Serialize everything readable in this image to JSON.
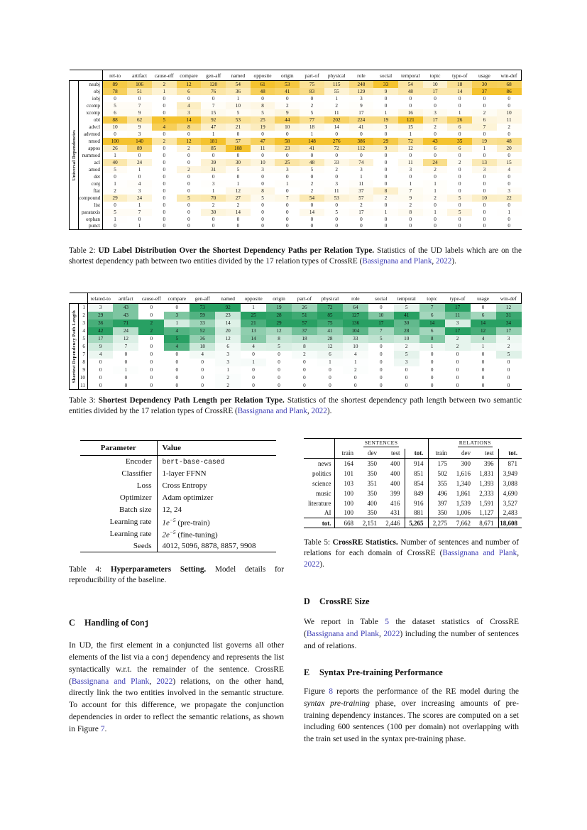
{
  "colors": {
    "link": "#3C3CB4",
    "heat_yellow": "#F5C32E",
    "heat_green": "#28A063"
  },
  "table2": {
    "side_label": "Universal Dependencies",
    "columns": [
      "rel-to",
      "artifact",
      "cause-eff",
      "compare",
      "gen-aff",
      "named",
      "opposite",
      "origin",
      "part-of",
      "physical",
      "role",
      "social",
      "temporal",
      "topic",
      "type-of",
      "usage",
      "win-def"
    ],
    "rows": [
      {
        "label": "nsubj",
        "values": [
          89,
          106,
          2,
          12,
          120,
          54,
          61,
          53,
          75,
          115,
          248,
          33,
          54,
          10,
          18,
          30,
          68
        ]
      },
      {
        "label": "obj",
        "values": [
          78,
          51,
          1,
          6,
          76,
          36,
          48,
          41,
          83,
          55,
          129,
          9,
          48,
          17,
          14,
          37,
          86
        ]
      },
      {
        "label": "iobj",
        "values": [
          0,
          0,
          0,
          0,
          0,
          1,
          0,
          0,
          0,
          1,
          3,
          0,
          0,
          0,
          0,
          0,
          0
        ]
      },
      {
        "label": "ccomp",
        "values": [
          5,
          7,
          0,
          4,
          7,
          10,
          8,
          2,
          2,
          2,
          9,
          0,
          0,
          0,
          0,
          0,
          0
        ]
      },
      {
        "label": "xcomp",
        "values": [
          6,
          9,
          0,
          3,
          15,
          5,
          5,
          9,
          5,
          11,
          17,
          1,
          16,
          3,
          1,
          2,
          10
        ]
      },
      {
        "label": "obl",
        "values": [
          88,
          62,
          5,
          14,
          92,
          53,
          25,
          44,
          77,
          202,
          224,
          19,
          121,
          17,
          26,
          6,
          11
        ]
      },
      {
        "label": "advcl",
        "values": [
          10,
          9,
          4,
          8,
          47,
          21,
          19,
          10,
          18,
          14,
          41,
          3,
          15,
          2,
          6,
          7,
          2
        ]
      },
      {
        "label": "advmod",
        "values": [
          0,
          3,
          0,
          0,
          1,
          0,
          0,
          0,
          1,
          0,
          0,
          0,
          1,
          0,
          0,
          0,
          0
        ]
      },
      {
        "label": "nmod",
        "values": [
          100,
          140,
          2,
          12,
          181,
          57,
          47,
          58,
          148,
          276,
          386,
          29,
          72,
          43,
          35,
          19,
          48
        ]
      },
      {
        "label": "appos",
        "values": [
          26,
          89,
          0,
          2,
          85,
          108,
          11,
          23,
          41,
          72,
          112,
          9,
          12,
          6,
          6,
          1,
          20
        ]
      },
      {
        "label": "nummod",
        "values": [
          1,
          0,
          0,
          0,
          0,
          0,
          0,
          0,
          0,
          0,
          0,
          0,
          0,
          0,
          0,
          0,
          0
        ]
      },
      {
        "label": "acl",
        "values": [
          40,
          24,
          0,
          0,
          39,
          30,
          10,
          25,
          48,
          33,
          74,
          0,
          11,
          24,
          2,
          13,
          15
        ]
      },
      {
        "label": "amod",
        "values": [
          5,
          1,
          0,
          2,
          31,
          5,
          3,
          3,
          5,
          2,
          3,
          0,
          3,
          2,
          0,
          3,
          4
        ]
      },
      {
        "label": "det",
        "values": [
          0,
          0,
          0,
          0,
          0,
          0,
          0,
          0,
          0,
          0,
          1,
          0,
          0,
          0,
          0,
          0,
          0
        ]
      },
      {
        "label": "conj",
        "values": [
          1,
          4,
          0,
          0,
          3,
          1,
          0,
          1,
          2,
          3,
          11,
          0,
          1,
          1,
          0,
          0,
          0
        ]
      },
      {
        "label": "flat",
        "values": [
          2,
          3,
          0,
          0,
          1,
          12,
          8,
          0,
          2,
          11,
          37,
          8,
          7,
          1,
          0,
          0,
          3
        ]
      },
      {
        "label": "compound",
        "values": [
          29,
          24,
          0,
          5,
          70,
          27,
          5,
          7,
          54,
          53,
          57,
          2,
          9,
          2,
          5,
          10,
          22
        ]
      },
      {
        "label": "list",
        "values": [
          0,
          1,
          0,
          0,
          2,
          2,
          0,
          0,
          0,
          0,
          2,
          0,
          2,
          0,
          0,
          0,
          0
        ]
      },
      {
        "label": "parataxis",
        "values": [
          5,
          7,
          0,
          0,
          30,
          14,
          0,
          0,
          14,
          5,
          17,
          1,
          8,
          1,
          5,
          0,
          1
        ]
      },
      {
        "label": "orphan",
        "values": [
          1,
          0,
          0,
          0,
          0,
          0,
          0,
          0,
          0,
          0,
          0,
          0,
          0,
          0,
          0,
          0,
          0
        ]
      },
      {
        "label": "punct",
        "values": [
          0,
          1,
          0,
          0,
          0,
          0,
          0,
          0,
          0,
          0,
          0,
          0,
          0,
          0,
          0,
          0,
          0
        ]
      }
    ],
    "caption": [
      {
        "t": "Table 2: ",
        "s": "n"
      },
      {
        "t": "UD Label Distribution Over the Shortest Dependency Paths per Relation Type.",
        "s": "b"
      },
      {
        "t": " Statistics of the UD labels which are on the shortest dependency path between two entities divided by the 17 relation types of CrossRE (",
        "s": "n"
      },
      {
        "t": "Bassignana and Plank",
        "s": "link"
      },
      {
        "t": ", ",
        "s": "n"
      },
      {
        "t": "2022",
        "s": "link"
      },
      {
        "t": ").",
        "s": "n"
      }
    ]
  },
  "table3": {
    "side_label": "Shortest Dependency Path Length",
    "columns": [
      "related-to",
      "artifact",
      "cause-eff",
      "compare",
      "gen-aff",
      "named",
      "opposite",
      "origin",
      "part-of",
      "physical",
      "role",
      "social",
      "temporal",
      "topic",
      "type-of",
      "usage",
      "win-def"
    ],
    "rows": [
      {
        "label": "1",
        "values": [
          3,
          43,
          0,
          0,
          73,
          92,
          1,
          19,
          26,
          72,
          64,
          0,
          5,
          7,
          17,
          0,
          12
        ]
      },
      {
        "label": "2",
        "values": [
          29,
          43,
          0,
          3,
          59,
          23,
          25,
          28,
          51,
          85,
          127,
          10,
          41,
          6,
          11,
          6,
          31
        ]
      },
      {
        "label": "3",
        "values": [
          36,
          71,
          2,
          1,
          33,
          14,
          21,
          29,
          57,
          75,
          136,
          17,
          30,
          14,
          3,
          14,
          34
        ]
      },
      {
        "label": "4",
        "values": [
          42,
          24,
          2,
          4,
          52,
          20,
          13,
          12,
          37,
          41,
          104,
          7,
          28,
          6,
          17,
          12,
          17
        ]
      },
      {
        "label": "5",
        "values": [
          17,
          12,
          0,
          5,
          36,
          12,
          14,
          8,
          18,
          28,
          33,
          5,
          10,
          8,
          2,
          4,
          3
        ]
      },
      {
        "label": "6",
        "values": [
          9,
          7,
          0,
          4,
          18,
          6,
          4,
          5,
          8,
          12,
          10,
          0,
          2,
          1,
          2,
          1,
          2
        ]
      },
      {
        "label": "7",
        "values": [
          4,
          0,
          0,
          0,
          4,
          3,
          0,
          0,
          2,
          6,
          4,
          0,
          5,
          0,
          0,
          0,
          5
        ]
      },
      {
        "label": "8",
        "values": [
          0,
          0,
          0,
          0,
          0,
          3,
          1,
          0,
          0,
          1,
          1,
          0,
          3,
          0,
          0,
          0,
          0
        ]
      },
      {
        "label": "9",
        "values": [
          0,
          1,
          0,
          0,
          0,
          1,
          0,
          0,
          0,
          0,
          2,
          0,
          0,
          0,
          0,
          0,
          0
        ]
      },
      {
        "label": "10",
        "values": [
          0,
          0,
          0,
          0,
          0,
          2,
          0,
          0,
          0,
          0,
          0,
          0,
          0,
          0,
          0,
          0,
          0
        ]
      },
      {
        "label": "11",
        "values": [
          0,
          0,
          0,
          0,
          0,
          2,
          0,
          0,
          0,
          0,
          0,
          0,
          0,
          0,
          0,
          0,
          0
        ]
      }
    ],
    "caption": [
      {
        "t": "Table 3: ",
        "s": "n"
      },
      {
        "t": "Shortest Dependency Path Length per Relation Type.",
        "s": "b"
      },
      {
        "t": " Statistics of the shortest dependency path length between two semantic entities divided by the 17 relation types of CrossRE (",
        "s": "n"
      },
      {
        "t": "Bassignana and Plank",
        "s": "link"
      },
      {
        "t": ", ",
        "s": "n"
      },
      {
        "t": "2022",
        "s": "link"
      },
      {
        "t": ").",
        "s": "n"
      }
    ]
  },
  "table4": {
    "headers": {
      "param": "Parameter",
      "value": "Value"
    },
    "rows": [
      {
        "param": "Encoder",
        "value": [
          {
            "t": "bert-base-cased",
            "s": "mono"
          }
        ]
      },
      {
        "param": "Classifier",
        "value": [
          {
            "t": "1-layer FFNN",
            "s": "n"
          }
        ]
      },
      {
        "param": "Loss",
        "value": [
          {
            "t": "Cross Entropy",
            "s": "n"
          }
        ]
      },
      {
        "param": "Optimizer",
        "value": [
          {
            "t": "Adam optimizer",
            "s": "n"
          }
        ]
      },
      {
        "param": "Batch size",
        "value": [
          {
            "t": "12, 24",
            "s": "n"
          }
        ]
      },
      {
        "param": "Learning rate",
        "value": [
          {
            "t": "1e",
            "s": "i"
          },
          {
            "t": "−5",
            "s": "sup"
          },
          {
            "t": " (pre-train)",
            "s": "n"
          }
        ]
      },
      {
        "param": "Learning rate",
        "value": [
          {
            "t": "2e",
            "s": "i"
          },
          {
            "t": "−5",
            "s": "sup"
          },
          {
            "t": " (fine-tuning)",
            "s": "n"
          }
        ]
      },
      {
        "param": "Seeds",
        "value": [
          {
            "t": "4012, 5096, 8878, 8857, 9908",
            "s": "n"
          }
        ]
      }
    ],
    "caption": [
      {
        "t": "Table 4: ",
        "s": "n"
      },
      {
        "t": "Hyperparameters Setting.",
        "s": "b"
      },
      {
        "t": " Model details for reproducibility of the baseline.",
        "s": "n"
      }
    ]
  },
  "table5": {
    "group_headers": [
      "Sentences",
      "Relations"
    ],
    "sub_headers": [
      "train",
      "dev",
      "test",
      "tot."
    ],
    "rows": [
      {
        "label": "news",
        "values": [
          "164",
          "350",
          "400",
          "914",
          "175",
          "300",
          "396",
          "871"
        ]
      },
      {
        "label": "politics",
        "values": [
          "101",
          "350",
          "400",
          "851",
          "502",
          "1,616",
          "1,831",
          "3,949"
        ]
      },
      {
        "label": "science",
        "values": [
          "103",
          "351",
          "400",
          "854",
          "355",
          "1,340",
          "1,393",
          "3,088"
        ]
      },
      {
        "label": "music",
        "values": [
          "100",
          "350",
          "399",
          "849",
          "496",
          "1,861",
          "2,333",
          "4,690"
        ]
      },
      {
        "label": "literature",
        "values": [
          "100",
          "400",
          "416",
          "916",
          "397",
          "1,539",
          "1,591",
          "3,527"
        ]
      },
      {
        "label": "AI",
        "values": [
          "100",
          "350",
          "431",
          "881",
          "350",
          "1,006",
          "1,127",
          "2,483"
        ]
      }
    ],
    "total": {
      "label": "tot.",
      "values": [
        "668",
        "2,151",
        "2,446",
        "5,265",
        "2,275",
        "7,662",
        "8,671",
        "18,608"
      ],
      "bold_indices": [
        3,
        7
      ]
    },
    "caption": [
      {
        "t": "Table 5: ",
        "s": "n"
      },
      {
        "t": "CrossRE Statistics.",
        "s": "b"
      },
      {
        "t": " Number of sentences and number of relations for each domain of CrossRE (",
        "s": "n"
      },
      {
        "t": "Bassignana and Plank",
        "s": "link"
      },
      {
        "t": ", ",
        "s": "n"
      },
      {
        "t": "2022",
        "s": "link"
      },
      {
        "t": ").",
        "s": "n"
      }
    ]
  },
  "sections": {
    "c": {
      "letter": "C",
      "title": [
        {
          "t": "Handling of ",
          "s": "n"
        },
        {
          "t": "Conj",
          "s": "mono"
        }
      ],
      "body": [
        {
          "t": "In UD, the first element in a conjuncted list governs all other elements of the list via a ",
          "s": "n"
        },
        {
          "t": "conj",
          "s": "mono"
        },
        {
          "t": " dependency and represents the list syntactically w.r.t. the remainder of the sentence. CrossRE (",
          "s": "n"
        },
        {
          "t": "Bassignana and Plank",
          "s": "link"
        },
        {
          "t": ", ",
          "s": "n"
        },
        {
          "t": "2022",
          "s": "link"
        },
        {
          "t": ") relations, on the other hand, directly link the two entities involved in the semantic structure. To account for this difference, we propagate the conjunction dependencies in order to reflect the semantic relations, as shown in Figure ",
          "s": "n"
        },
        {
          "t": "7",
          "s": "link"
        },
        {
          "t": ".",
          "s": "n"
        }
      ]
    },
    "d": {
      "letter": "D",
      "title": [
        {
          "t": "CrossRE Size",
          "s": "n"
        }
      ],
      "body": [
        {
          "t": "We report in Table ",
          "s": "n"
        },
        {
          "t": "5",
          "s": "link"
        },
        {
          "t": " the dataset statistics of CrossRE (",
          "s": "n"
        },
        {
          "t": "Bassignana and Plank",
          "s": "link"
        },
        {
          "t": ", ",
          "s": "n"
        },
        {
          "t": "2022",
          "s": "link"
        },
        {
          "t": ") including the number of sentences and of relations.",
          "s": "n"
        }
      ]
    },
    "e": {
      "letter": "E",
      "title": [
        {
          "t": "Syntax Pre-training Performance",
          "s": "n"
        }
      ],
      "body": [
        {
          "t": "Figure ",
          "s": "n"
        },
        {
          "t": "8",
          "s": "link"
        },
        {
          "t": " reports the performance of the RE model during the ",
          "s": "n"
        },
        {
          "t": "syntax pre-training",
          "s": "i"
        },
        {
          "t": " phase, over increasing amounts of pre-training dependency instances. The scores are computed on a set including 600 sentences (100 per domain) not overlapping with the train set used in the syntax pre-training phase.",
          "s": "n"
        }
      ]
    }
  }
}
